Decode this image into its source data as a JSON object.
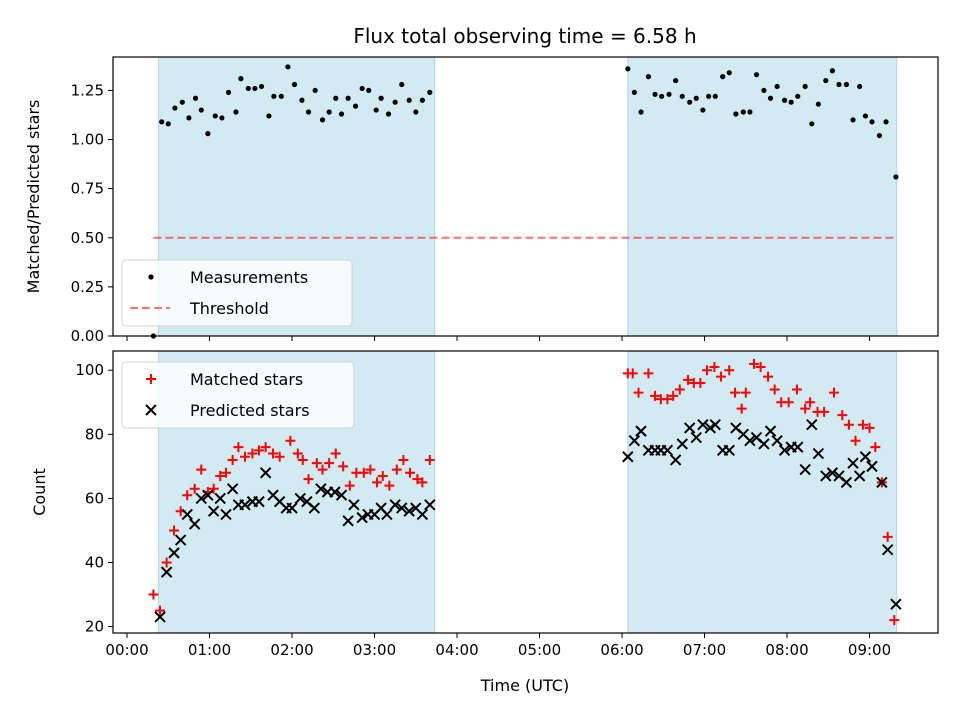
{
  "figure": {
    "title": "Flux total observing time = 6.58 h",
    "xlabel": "Time (UTC)"
  },
  "colors": {
    "shade": "#add8e6",
    "threshold": "#ff0000",
    "measurement": "#000000",
    "matched": "#ff0000",
    "predicted": "#000000"
  },
  "chart_data": [
    {
      "type": "scatter",
      "panel": "top",
      "ylabel": "Matched/Predicted stars",
      "xlim": [
        -0.17,
        9.83
      ],
      "ylim": [
        0,
        1.42
      ],
      "yticks": [
        0.0,
        0.25,
        0.5,
        0.75,
        1.0,
        1.25
      ],
      "ytick_labels": [
        "0.00",
        "0.25",
        "0.50",
        "0.75",
        "1.00",
        "1.25"
      ],
      "shaded_ranges": [
        [
          0.38,
          3.73
        ],
        [
          6.07,
          9.33
        ]
      ],
      "legend": {
        "position": "lower-left",
        "entries": [
          "Measurements",
          "Threshold"
        ]
      },
      "series": [
        {
          "name": "Measurements",
          "marker": "dot",
          "points": [
            [
              0.32,
              0.0
            ],
            [
              0.42,
              1.09
            ],
            [
              0.5,
              1.08
            ],
            [
              0.58,
              1.16
            ],
            [
              0.67,
              1.19
            ],
            [
              0.75,
              1.11
            ],
            [
              0.83,
              1.21
            ],
            [
              0.9,
              1.15
            ],
            [
              0.98,
              1.03
            ],
            [
              1.07,
              1.12
            ],
            [
              1.15,
              1.11
            ],
            [
              1.23,
              1.24
            ],
            [
              1.32,
              1.14
            ],
            [
              1.38,
              1.31
            ],
            [
              1.47,
              1.26
            ],
            [
              1.55,
              1.26
            ],
            [
              1.63,
              1.27
            ],
            [
              1.72,
              1.12
            ],
            [
              1.78,
              1.22
            ],
            [
              1.87,
              1.22
            ],
            [
              1.95,
              1.37
            ],
            [
              2.03,
              1.28
            ],
            [
              2.12,
              1.2
            ],
            [
              2.2,
              1.14
            ],
            [
              2.28,
              1.25
            ],
            [
              2.37,
              1.1
            ],
            [
              2.45,
              1.14
            ],
            [
              2.53,
              1.21
            ],
            [
              2.6,
              1.13
            ],
            [
              2.68,
              1.21
            ],
            [
              2.77,
              1.17
            ],
            [
              2.85,
              1.26
            ],
            [
              2.93,
              1.25
            ],
            [
              3.02,
              1.15
            ],
            [
              3.08,
              1.21
            ],
            [
              3.17,
              1.13
            ],
            [
              3.25,
              1.19
            ],
            [
              3.33,
              1.28
            ],
            [
              3.42,
              1.2
            ],
            [
              3.5,
              1.14
            ],
            [
              3.58,
              1.2
            ],
            [
              3.67,
              1.24
            ],
            [
              6.07,
              1.36
            ],
            [
              6.15,
              1.24
            ],
            [
              6.23,
              1.14
            ],
            [
              6.32,
              1.32
            ],
            [
              6.4,
              1.23
            ],
            [
              6.48,
              1.22
            ],
            [
              6.57,
              1.23
            ],
            [
              6.65,
              1.3
            ],
            [
              6.73,
              1.22
            ],
            [
              6.82,
              1.19
            ],
            [
              6.9,
              1.21
            ],
            [
              6.98,
              1.15
            ],
            [
              7.05,
              1.22
            ],
            [
              7.13,
              1.22
            ],
            [
              7.22,
              1.32
            ],
            [
              7.3,
              1.34
            ],
            [
              7.38,
              1.13
            ],
            [
              7.47,
              1.14
            ],
            [
              7.55,
              1.14
            ],
            [
              7.63,
              1.33
            ],
            [
              7.72,
              1.25
            ],
            [
              7.8,
              1.21
            ],
            [
              7.88,
              1.27
            ],
            [
              7.97,
              1.2
            ],
            [
              8.05,
              1.19
            ],
            [
              8.13,
              1.22
            ],
            [
              8.22,
              1.27
            ],
            [
              8.3,
              1.08
            ],
            [
              8.38,
              1.18
            ],
            [
              8.47,
              1.3
            ],
            [
              8.55,
              1.35
            ],
            [
              8.63,
              1.28
            ],
            [
              8.72,
              1.28
            ],
            [
              8.8,
              1.1
            ],
            [
              8.88,
              1.27
            ],
            [
              8.95,
              1.12
            ],
            [
              9.03,
              1.09
            ],
            [
              9.12,
              1.02
            ],
            [
              9.2,
              1.09
            ],
            [
              9.32,
              0.81
            ]
          ]
        },
        {
          "name": "Threshold",
          "marker": "dashed-line",
          "points": [
            [
              0.32,
              0.5
            ],
            [
              9.33,
              0.5
            ]
          ]
        }
      ]
    },
    {
      "type": "scatter",
      "panel": "bottom",
      "ylabel": "Count",
      "xlim": [
        -0.17,
        9.83
      ],
      "ylim": [
        18,
        106
      ],
      "yticks": [
        20,
        40,
        60,
        80,
        100
      ],
      "ytick_labels": [
        "20",
        "40",
        "60",
        "80",
        "100"
      ],
      "xticks": [
        0,
        1,
        2,
        3,
        4,
        5,
        6,
        7,
        8,
        9
      ],
      "xtick_labels": [
        "00:00",
        "01:00",
        "02:00",
        "03:00",
        "04:00",
        "05:00",
        "06:00",
        "07:00",
        "08:00",
        "09:00"
      ],
      "shaded_ranges": [
        [
          0.38,
          3.73
        ],
        [
          6.07,
          9.33
        ]
      ],
      "legend": {
        "position": "upper-left",
        "entries": [
          "Matched stars",
          "Predicted stars"
        ]
      },
      "series": [
        {
          "name": "Matched stars",
          "marker": "plus",
          "points": [
            [
              0.32,
              30
            ],
            [
              0.4,
              25
            ],
            [
              0.48,
              40
            ],
            [
              0.57,
              50
            ],
            [
              0.65,
              56
            ],
            [
              0.73,
              61
            ],
            [
              0.82,
              63
            ],
            [
              0.9,
              69
            ],
            [
              0.98,
              62
            ],
            [
              1.05,
              63
            ],
            [
              1.13,
              67
            ],
            [
              1.2,
              68
            ],
            [
              1.28,
              72
            ],
            [
              1.35,
              76
            ],
            [
              1.43,
              73
            ],
            [
              1.52,
              74
            ],
            [
              1.6,
              75
            ],
            [
              1.68,
              76
            ],
            [
              1.77,
              74
            ],
            [
              1.85,
              73
            ],
            [
              1.98,
              78
            ],
            [
              2.07,
              74
            ],
            [
              2.13,
              72
            ],
            [
              2.2,
              66
            ],
            [
              2.3,
              71
            ],
            [
              2.37,
              69
            ],
            [
              2.45,
              71
            ],
            [
              2.53,
              74
            ],
            [
              2.62,
              70
            ],
            [
              2.7,
              64
            ],
            [
              2.78,
              68
            ],
            [
              2.87,
              68
            ],
            [
              2.95,
              69
            ],
            [
              3.03,
              65
            ],
            [
              3.1,
              67
            ],
            [
              3.18,
              64
            ],
            [
              3.27,
              69
            ],
            [
              3.35,
              72
            ],
            [
              3.43,
              68
            ],
            [
              3.52,
              66
            ],
            [
              3.58,
              65
            ],
            [
              3.67,
              72
            ],
            [
              6.07,
              99
            ],
            [
              6.13,
              99
            ],
            [
              6.2,
              93
            ],
            [
              6.32,
              99
            ],
            [
              6.4,
              92
            ],
            [
              6.47,
              91
            ],
            [
              6.55,
              91
            ],
            [
              6.62,
              92
            ],
            [
              6.7,
              94
            ],
            [
              6.8,
              97
            ],
            [
              6.87,
              96
            ],
            [
              6.95,
              96
            ],
            [
              7.03,
              100
            ],
            [
              7.12,
              101
            ],
            [
              7.2,
              98
            ],
            [
              7.3,
              100
            ],
            [
              7.37,
              93
            ],
            [
              7.45,
              88
            ],
            [
              7.5,
              93
            ],
            [
              7.6,
              102
            ],
            [
              7.68,
              101
            ],
            [
              7.77,
              98
            ],
            [
              7.85,
              94
            ],
            [
              7.93,
              90
            ],
            [
              8.02,
              90
            ],
            [
              8.12,
              94
            ],
            [
              8.22,
              88
            ],
            [
              8.28,
              90
            ],
            [
              8.37,
              87
            ],
            [
              8.45,
              87
            ],
            [
              8.57,
              93
            ],
            [
              8.67,
              86
            ],
            [
              8.75,
              83
            ],
            [
              8.83,
              78
            ],
            [
              8.92,
              83
            ],
            [
              9.0,
              82
            ],
            [
              9.07,
              76
            ],
            [
              9.15,
              65
            ],
            [
              9.22,
              48
            ],
            [
              9.3,
              22
            ]
          ]
        },
        {
          "name": "Predicted stars",
          "marker": "x",
          "points": [
            [
              0.4,
              23
            ],
            [
              0.48,
              37
            ],
            [
              0.57,
              43
            ],
            [
              0.65,
              47
            ],
            [
              0.73,
              55
            ],
            [
              0.82,
              52
            ],
            [
              0.9,
              60
            ],
            [
              0.98,
              61
            ],
            [
              1.05,
              56
            ],
            [
              1.13,
              60
            ],
            [
              1.2,
              55
            ],
            [
              1.28,
              63
            ],
            [
              1.35,
              58
            ],
            [
              1.43,
              58
            ],
            [
              1.52,
              59
            ],
            [
              1.6,
              59
            ],
            [
              1.68,
              68
            ],
            [
              1.77,
              61
            ],
            [
              1.85,
              59
            ],
            [
              1.93,
              57
            ],
            [
              2.0,
              57
            ],
            [
              2.1,
              60
            ],
            [
              2.18,
              59
            ],
            [
              2.27,
              57
            ],
            [
              2.35,
              63
            ],
            [
              2.43,
              62
            ],
            [
              2.52,
              62
            ],
            [
              2.6,
              61
            ],
            [
              2.68,
              53
            ],
            [
              2.75,
              58
            ],
            [
              2.85,
              54
            ],
            [
              2.92,
              55
            ],
            [
              3.0,
              55
            ],
            [
              3.08,
              57
            ],
            [
              3.15,
              55
            ],
            [
              3.25,
              58
            ],
            [
              3.33,
              57
            ],
            [
              3.42,
              56
            ],
            [
              3.5,
              57
            ],
            [
              3.58,
              55
            ],
            [
              3.67,
              58
            ],
            [
              6.07,
              73
            ],
            [
              6.15,
              78
            ],
            [
              6.23,
              81
            ],
            [
              6.32,
              75
            ],
            [
              6.4,
              75
            ],
            [
              6.47,
              75
            ],
            [
              6.55,
              75
            ],
            [
              6.65,
              72
            ],
            [
              6.73,
              77
            ],
            [
              6.82,
              82
            ],
            [
              6.9,
              79
            ],
            [
              6.98,
              83
            ],
            [
              7.07,
              82
            ],
            [
              7.13,
              83
            ],
            [
              7.22,
              75
            ],
            [
              7.3,
              75
            ],
            [
              7.38,
              82
            ],
            [
              7.47,
              80
            ],
            [
              7.55,
              78
            ],
            [
              7.63,
              79
            ],
            [
              7.72,
              77
            ],
            [
              7.8,
              81
            ],
            [
              7.88,
              78
            ],
            [
              7.97,
              75
            ],
            [
              8.05,
              76
            ],
            [
              8.13,
              76
            ],
            [
              8.22,
              69
            ],
            [
              8.3,
              83
            ],
            [
              8.38,
              74
            ],
            [
              8.47,
              67
            ],
            [
              8.55,
              68
            ],
            [
              8.63,
              67
            ],
            [
              8.72,
              65
            ],
            [
              8.8,
              71
            ],
            [
              8.88,
              67
            ],
            [
              8.95,
              73
            ],
            [
              9.03,
              70
            ],
            [
              9.15,
              65
            ],
            [
              9.22,
              44
            ],
            [
              9.32,
              27
            ]
          ]
        }
      ]
    }
  ]
}
